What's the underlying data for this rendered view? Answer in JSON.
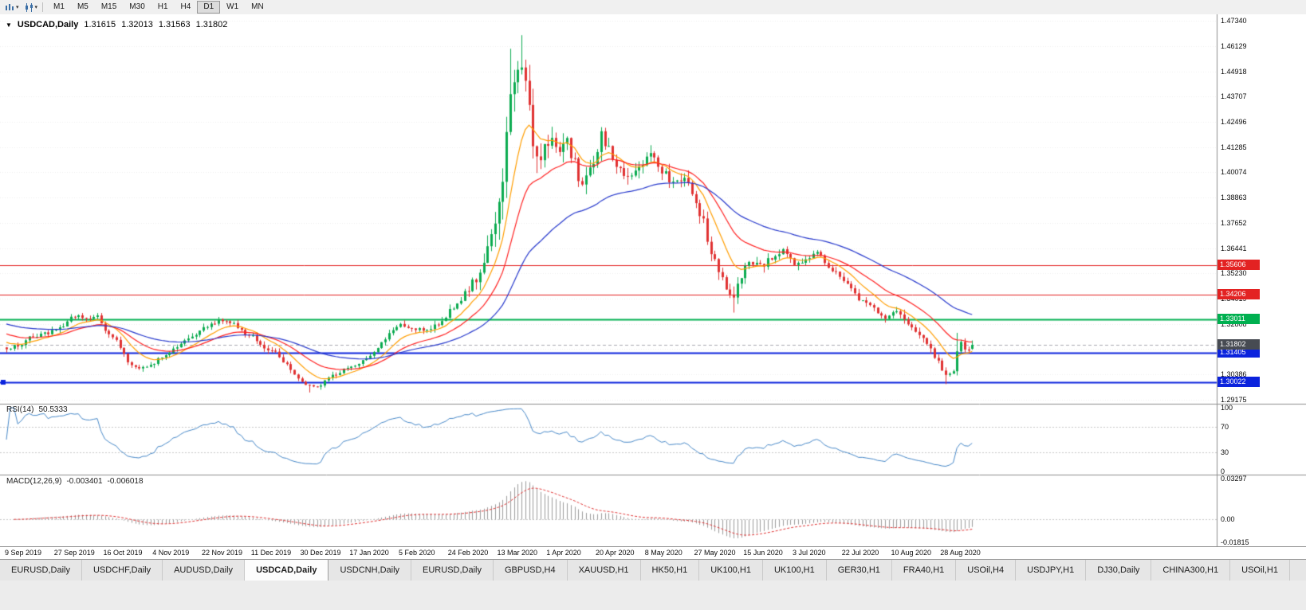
{
  "toolbar": {
    "timeframes": [
      {
        "label": "M1"
      },
      {
        "label": "M5"
      },
      {
        "label": "M15"
      },
      {
        "label": "M30"
      },
      {
        "label": "H1"
      },
      {
        "label": "H4"
      },
      {
        "label": "D1"
      },
      {
        "label": "W1"
      },
      {
        "label": "MN"
      }
    ],
    "active_timeframe": "D1"
  },
  "chart": {
    "header": {
      "symbol": "USDCAD,Daily",
      "open": "1.31615",
      "high": "1.32013",
      "low": "1.31563",
      "close": "1.31802"
    },
    "y_axis_ticks": [
      "1.47340",
      "1.46129",
      "1.44918",
      "1.43707",
      "1.42496",
      "1.41285",
      "1.40074",
      "1.38863",
      "1.37652",
      "1.36441",
      "1.35230",
      "1.34019",
      "1.32808",
      "1.31597",
      "1.30386",
      "1.29175"
    ],
    "price_lines": [
      {
        "label": "1.35606",
        "price": 1.35606,
        "color": "#e32222",
        "width": 1,
        "kind": "resistance"
      },
      {
        "label": "1.34206",
        "price": 1.34206,
        "color": "#e32222",
        "width": 1,
        "kind": "resistance"
      },
      {
        "label": "1.33011",
        "price": 1.33011,
        "color": "#00b050",
        "width": 2,
        "kind": "pivot"
      },
      {
        "label": "1.31405",
        "price": 1.31405,
        "color": "#0b23dd",
        "width": 2,
        "kind": "support"
      },
      {
        "label": "1.30022",
        "price": 1.30022,
        "color": "#0b23dd",
        "width": 2,
        "kind": "support",
        "left_handle": true
      }
    ],
    "current_price": {
      "label": "1.31802",
      "price": 1.31802,
      "tag_color": "#474b52"
    }
  },
  "rsi_panel": {
    "title": "RSI(14)",
    "value": "50.5333",
    "levels": [
      {
        "label": "100",
        "value": 100
      },
      {
        "label": "70",
        "value": 70
      },
      {
        "label": "30",
        "value": 30
      },
      {
        "label": "0",
        "value": 0
      }
    ]
  },
  "macd_panel": {
    "title": "MACD(12,26,9)",
    "value_main": "-0.003401",
    "value_signal": "-0.006018",
    "levels": [
      {
        "label": "0.03297",
        "value": 0.033
      },
      {
        "label": "0.00",
        "value": 0
      },
      {
        "label": "-0.01815",
        "value": -0.0185
      }
    ]
  },
  "x_axis_labels": [
    "9 Sep 2019",
    "27 Sep 2019",
    "16 Oct 2019",
    "4 Nov 2019",
    "22 Nov 2019",
    "11 Dec 2019",
    "30 Dec 2019",
    "17 Jan 2020",
    "5 Feb 2020",
    "24 Feb 2020",
    "13 Mar 2020",
    "1 Apr 2020",
    "20 Apr 2020",
    "8 May 2020",
    "27 May 2020",
    "15 Jun 2020",
    "3 Jul 2020",
    "22 Jul 2020",
    "10 Aug 2020",
    "28 Aug 2020"
  ],
  "tabs": [
    "EURUSD,Daily",
    "USDCHF,Daily",
    "AUDUSD,Daily",
    "USDCAD,Daily",
    "USDCNH,Daily",
    "EURUSD,Daily",
    "GBPUSD,H4",
    "XAUUSD,H1",
    "HK50,H1",
    "UK100,H1",
    "UK100,H1",
    "GER30,H1",
    "FRA40,H1",
    "USOil,H4",
    "USDJPY,H1",
    "DJ30,Daily",
    "CHINA300,H1",
    "USOil,H1"
  ],
  "active_tab_index": 3,
  "chart_data": [
    {
      "type": "candlestick",
      "title": "USDCAD Daily",
      "x_labels": [
        "9 Sep 2019",
        "27 Sep 2019",
        "16 Oct 2019",
        "4 Nov 2019",
        "22 Nov 2019",
        "11 Dec 2019",
        "30 Dec 2019",
        "17 Jan 2020",
        "5 Feb 2020",
        "24 Feb 2020",
        "13 Mar 2020",
        "1 Apr 2020",
        "20 Apr 2020",
        "8 May 2020",
        "27 May 2020",
        "15 Jun 2020",
        "3 Jul 2020",
        "22 Jul 2020",
        "10 Aug 2020",
        "28 Aug 2020"
      ],
      "bars_per_label": 13,
      "bar_count": 256,
      "ylim": [
        1.2898,
        1.4765
      ],
      "last_candle_ohlc": [
        1.31615,
        1.32013,
        1.31563,
        1.31802
      ],
      "close_path": [
        [
          0,
          1.3168
        ],
        [
          3,
          1.3175
        ],
        [
          6,
          1.3212
        ],
        [
          9,
          1.3228
        ],
        [
          12,
          1.3242
        ],
        [
          15,
          1.3278
        ],
        [
          18,
          1.3322
        ],
        [
          21,
          1.33
        ],
        [
          24,
          1.3318
        ],
        [
          26,
          1.3252
        ],
        [
          29,
          1.32
        ],
        [
          32,
          1.3105
        ],
        [
          35,
          1.307
        ],
        [
          38,
          1.3075
        ],
        [
          41,
          1.3122
        ],
        [
          44,
          1.3158
        ],
        [
          47,
          1.3192
        ],
        [
          50,
          1.3238
        ],
        [
          53,
          1.3268
        ],
        [
          56,
          1.3302
        ],
        [
          59,
          1.3288
        ],
        [
          62,
          1.3252
        ],
        [
          65,
          1.3215
        ],
        [
          68,
          1.3172
        ],
        [
          71,
          1.3148
        ],
        [
          74,
          1.3082
        ],
        [
          77,
          1.3012
        ],
        [
          80,
          1.2978
        ],
        [
          83,
          1.2994
        ],
        [
          86,
          1.3038
        ],
        [
          89,
          1.3058
        ],
        [
          92,
          1.3072
        ],
        [
          95,
          1.3112
        ],
        [
          98,
          1.3162
        ],
        [
          101,
          1.3228
        ],
        [
          104,
          1.3282
        ],
        [
          107,
          1.3266
        ],
        [
          110,
          1.3248
        ],
        [
          113,
          1.3274
        ],
        [
          116,
          1.3312
        ],
        [
          119,
          1.3388
        ],
        [
          122,
          1.3448
        ],
        [
          125,
          1.3525
        ],
        [
          127,
          1.3662
        ],
        [
          129,
          1.3788
        ],
        [
          131,
          1.3958
        ],
        [
          133,
          1.4355
        ],
        [
          134,
          1.4488
        ],
        [
          136,
          1.4558
        ],
        [
          138,
          1.4275
        ],
        [
          140,
          1.4048
        ],
        [
          142,
          1.4122
        ],
        [
          144,
          1.4165
        ],
        [
          146,
          1.4082
        ],
        [
          148,
          1.4152
        ],
        [
          150,
          1.4062
        ],
        [
          152,
          1.3932
        ],
        [
          155,
          1.4058
        ],
        [
          157,
          1.4188
        ],
        [
          159,
          1.4108
        ],
        [
          161,
          1.4032
        ],
        [
          164,
          1.3962
        ],
        [
          167,
          1.4042
        ],
        [
          170,
          1.4082
        ],
        [
          173,
          1.4012
        ],
        [
          176,
          1.3958
        ],
        [
          179,
          1.3998
        ],
        [
          182,
          1.3872
        ],
        [
          184,
          1.3762
        ],
        [
          186,
          1.3622
        ],
        [
          188,
          1.3522
        ],
        [
          190,
          1.3452
        ],
        [
          192,
          1.3412
        ],
        [
          194,
          1.3522
        ],
        [
          196,
          1.3582
        ],
        [
          199,
          1.3555
        ],
        [
          202,
          1.3602
        ],
        [
          205,
          1.3642
        ],
        [
          208,
          1.3572
        ],
        [
          211,
          1.3592
        ],
        [
          214,
          1.3612
        ],
        [
          217,
          1.3562
        ],
        [
          220,
          1.3508
        ],
        [
          223,
          1.3438
        ],
        [
          226,
          1.3382
        ],
        [
          229,
          1.3348
        ],
        [
          232,
          1.3312
        ],
        [
          235,
          1.3348
        ],
        [
          238,
          1.3292
        ],
        [
          241,
          1.3232
        ],
        [
          244,
          1.3152
        ],
        [
          246,
          1.3092
        ],
        [
          248,
          1.3042
        ],
        [
          250,
          1.3062
        ],
        [
          251,
          1.3155
        ],
        [
          252,
          1.3196
        ],
        [
          253,
          1.3152
        ],
        [
          254,
          1.3162
        ],
        [
          255,
          1.318
        ]
      ],
      "volatility_path": [
        [
          0,
          0.0022
        ],
        [
          70,
          0.0024
        ],
        [
          100,
          0.0022
        ],
        [
          115,
          0.0028
        ],
        [
          122,
          0.0048
        ],
        [
          127,
          0.0075
        ],
        [
          131,
          0.0115
        ],
        [
          134,
          0.014
        ],
        [
          137,
          0.013
        ],
        [
          141,
          0.011
        ],
        [
          145,
          0.0085
        ],
        [
          152,
          0.007
        ],
        [
          160,
          0.0062
        ],
        [
          170,
          0.0056
        ],
        [
          180,
          0.005
        ],
        [
          185,
          0.0062
        ],
        [
          192,
          0.0055
        ],
        [
          196,
          0.0042
        ],
        [
          205,
          0.0036
        ],
        [
          215,
          0.0032
        ],
        [
          225,
          0.003
        ],
        [
          235,
          0.0032
        ],
        [
          244,
          0.0034
        ],
        [
          250,
          0.003
        ],
        [
          255,
          0.002
        ]
      ],
      "forced_wicks": [
        [
          133,
          "h",
          1.46
        ],
        [
          136,
          "h",
          1.4665
        ],
        [
          80,
          "l",
          1.2952
        ],
        [
          192,
          "l",
          1.3335
        ],
        [
          248,
          "l",
          1.2992
        ],
        [
          251,
          "h",
          1.3238
        ]
      ],
      "overlays": {
        "moving_averages": [
          {
            "name": "ma-fast",
            "period": 10,
            "color": "#ff9d00",
            "seed": 1.32
          },
          {
            "name": "ma-mid",
            "period": 22,
            "color": "#ff2020",
            "seed": 1.324
          },
          {
            "name": "ma-slow",
            "period": 50,
            "color": "#2739cc",
            "seed": 1.3285
          }
        ],
        "horizontal_lines": [
          1.35606,
          1.34206,
          1.33011,
          1.31405,
          1.30022
        ]
      },
      "colors": {
        "up": "#0cab50",
        "down": "#e03232"
      }
    },
    {
      "type": "line",
      "name": "RSI(14)",
      "period": 14,
      "derived_from": "close_path",
      "range": [
        0,
        100
      ],
      "levels": [
        70,
        30
      ],
      "color": "#4788c8",
      "last_value": 50.5333
    },
    {
      "type": "macd",
      "name": "MACD(12,26,9)",
      "fast": 12,
      "slow": 26,
      "signal": 9,
      "derived_from": "close_path",
      "range": [
        -0.0185,
        0.033
      ],
      "histogram_color": "#9c9c9c",
      "signal_color": "#e03232",
      "last_main": -0.003401,
      "last_signal": -0.006018
    }
  ]
}
